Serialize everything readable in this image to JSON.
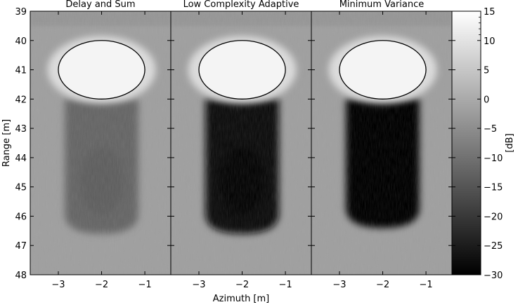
{
  "chart_data": {
    "type": "heatmap",
    "panels": [
      {
        "title": "Delay and Sum",
        "bright_level_db": 13,
        "background_level_db": -2,
        "shadow_level_db": -12,
        "shadow_range_m": [
          42,
          46.6
        ]
      },
      {
        "title": "Low Complexity Adaptive",
        "bright_level_db": 13,
        "background_level_db": -2,
        "shadow_level_db": -27,
        "shadow_range_m": [
          42,
          46.6
        ]
      },
      {
        "title": "Minimum Variance",
        "bright_level_db": 13,
        "background_level_db": -2,
        "shadow_level_db": -29,
        "shadow_range_m": [
          42,
          46.4
        ]
      }
    ],
    "target_ellipse": {
      "center_azimuth_m": -2.0,
      "center_range_m": 41.0,
      "semi_azimuth_m": 1.0,
      "semi_range_m": 1.0
    },
    "x_range_m": [
      -3.65,
      -0.4
    ],
    "y_range_m": [
      39,
      48
    ],
    "x_ticks": [
      {
        "value": -3,
        "label": "−3"
      },
      {
        "value": -2,
        "label": "−2"
      },
      {
        "value": -1,
        "label": "−1"
      }
    ],
    "y_ticks": [
      {
        "value": 39,
        "label": "39"
      },
      {
        "value": 40,
        "label": "40"
      },
      {
        "value": 41,
        "label": "41"
      },
      {
        "value": 42,
        "label": "42"
      },
      {
        "value": 43,
        "label": "43"
      },
      {
        "value": 44,
        "label": "44"
      },
      {
        "value": 45,
        "label": "45"
      },
      {
        "value": 46,
        "label": "46"
      },
      {
        "value": 47,
        "label": "47"
      },
      {
        "value": 48,
        "label": "48"
      }
    ],
    "xlabel": "Azimuth [m]",
    "ylabel": "Range [m]",
    "colorbar": {
      "label": "[dB]",
      "range": [
        -30,
        15
      ],
      "colormap": "gray",
      "ticks": [
        {
          "value": 15,
          "label": "15"
        },
        {
          "value": 10,
          "label": "10"
        },
        {
          "value": 5,
          "label": "5"
        },
        {
          "value": 0,
          "label": "0"
        },
        {
          "value": -5,
          "label": "−5"
        },
        {
          "value": -10,
          "label": "−10"
        },
        {
          "value": -15,
          "label": "−15"
        },
        {
          "value": -20,
          "label": "−20"
        },
        {
          "value": -25,
          "label": "−25"
        },
        {
          "value": -30,
          "label": "−30"
        }
      ]
    }
  }
}
